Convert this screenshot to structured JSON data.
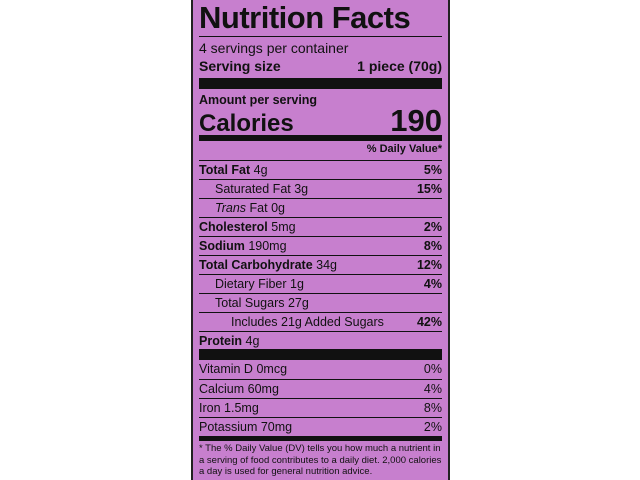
{
  "title": "Nutrition Facts",
  "servings": "4 servings per container",
  "serving_size": {
    "label": "Serving size",
    "value": "1 piece (70g)"
  },
  "amount_per_serving": "Amount per serving",
  "calories": {
    "label": "Calories",
    "value": "190"
  },
  "dv_header": "% Daily Value*",
  "nutrients": [
    {
      "name": "Total Fat",
      "amount": "4g",
      "dv": "5%"
    },
    {
      "name": "Saturated Fat",
      "amount": "3g",
      "dv": "15%"
    },
    {
      "prefix": "Trans",
      "name": "Fat",
      "amount": "0g"
    },
    {
      "name": "Cholesterol",
      "amount": "5mg",
      "dv": "2%"
    },
    {
      "name": "Sodium",
      "amount": "190mg",
      "dv": "8%"
    },
    {
      "name": "Total Carbohydrate",
      "amount": "34g",
      "dv": "12%"
    },
    {
      "name": "Dietary Fiber",
      "amount": "1g",
      "dv": "4%"
    },
    {
      "name": "Total Sugars",
      "amount": "27g"
    },
    {
      "name": "Includes 21g Added Sugars",
      "dv": "42%"
    },
    {
      "name": "Protein",
      "amount": "4g"
    }
  ],
  "vitamins": [
    {
      "name": "Vitamin D",
      "amount": "0mcg",
      "dv": "0%"
    },
    {
      "name": "Calcium",
      "amount": "60mg",
      "dv": "4%"
    },
    {
      "name": "Iron",
      "amount": "1.5mg",
      "dv": "8%"
    },
    {
      "name": "Potassium",
      "amount": "70mg",
      "dv": "2%"
    }
  ],
  "footnote": "* The % Daily Value (DV) tells you how much a nutrient in a serving of food contributes to a daily diet. 2,000 calories a day is used for general nutrition advice."
}
